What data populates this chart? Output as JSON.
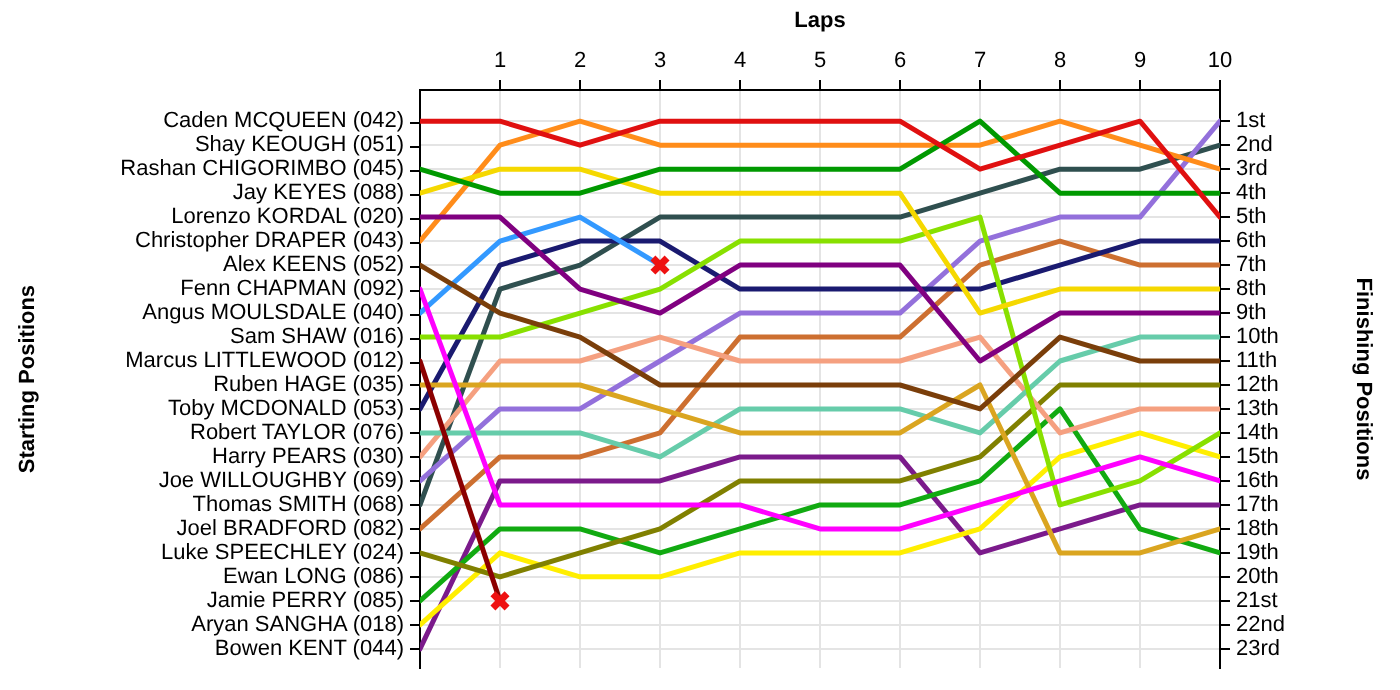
{
  "chart_data": {
    "type": "line",
    "xlabel": "Laps",
    "y2label": "Finishing Positions",
    "x": [
      0,
      1,
      2,
      3,
      4,
      5,
      6,
      7,
      8,
      9,
      10
    ],
    "xlim": [
      0,
      10
    ],
    "xticks": [
      1,
      2,
      3,
      4,
      5,
      6,
      7,
      8,
      9,
      10
    ],
    "y2lim": [
      23.8,
      -0.3
    ],
    "y2ticks": [
      {
        "value": 1,
        "label": "1st"
      },
      {
        "value": 2,
        "label": "2nd"
      },
      {
        "value": 3,
        "label": "3rd"
      },
      {
        "value": 4,
        "label": "4th"
      },
      {
        "value": 5,
        "label": "5th"
      },
      {
        "value": 6,
        "label": "6th"
      },
      {
        "value": 7,
        "label": "7th"
      },
      {
        "value": 8,
        "label": "8th"
      },
      {
        "value": 9,
        "label": "9th"
      },
      {
        "value": 10,
        "label": "10th"
      },
      {
        "value": 11,
        "label": "11th"
      },
      {
        "value": 12,
        "label": "12th"
      },
      {
        "value": 13,
        "label": "13th"
      },
      {
        "value": 14,
        "label": "14th"
      },
      {
        "value": 15,
        "label": "15th"
      },
      {
        "value": 16,
        "label": "16th"
      },
      {
        "value": 17,
        "label": "17th"
      },
      {
        "value": 18,
        "label": "18th"
      },
      {
        "value": 19,
        "label": "19th"
      },
      {
        "value": 20,
        "label": "20th"
      },
      {
        "value": 21,
        "label": "21st"
      },
      {
        "value": 22,
        "label": "22nd"
      },
      {
        "value": 23,
        "label": "23rd"
      }
    ],
    "annotations": [
      "Caden MCQUEEN (042)",
      "Shay KEOUGH (051)",
      "Rashan CHIGORIMBO (045)",
      "Jay KEYES (088)",
      "Lorenzo KORDAL (020)",
      "Christopher DRAPER (043)",
      "Alex KEENS (052)",
      "Fenn CHAPMAN (092)",
      "Angus MOULSDALE (040)",
      "Sam SHAW (016)",
      "Marcus LITTLEWOOD (012)",
      "Ruben HAGE (035)",
      "Toby MCDONALD (053)",
      "Robert TAYLOR (076)",
      "Harry PEARS (030)",
      "Joe WILLOUGHBY (069)",
      "Thomas SMITH (068)",
      "Joel BRADFORD (082)",
      "Luke SPEECHLEY (024)",
      "Ewan LONG (086)",
      "Jamie PERRY (085)",
      "Aryan SANGHA (018)",
      "Bowen KENT (044)",
      "Starting Positions"
    ],
    "grid": true,
    "legend": false,
    "marker": "none",
    "line_style": "solid",
    "series": [
      {
        "axis": "y2",
        "color": "#e01010",
        "values": [
          1,
          1,
          2,
          1,
          1,
          1,
          1,
          3,
          2,
          1,
          5
        ]
      },
      {
        "axis": "y2",
        "color": "#009900",
        "values": [
          3,
          4,
          4,
          3,
          3,
          3,
          3,
          1,
          4,
          4,
          4
        ]
      },
      {
        "axis": "y2",
        "color": "#f5d800",
        "values": [
          4,
          3,
          3,
          4,
          4,
          4,
          4,
          9,
          8,
          8,
          8
        ]
      },
      {
        "axis": "y2",
        "color": "#800080",
        "values": [
          5,
          5,
          8,
          9,
          7,
          7,
          7,
          11,
          9,
          9,
          9
        ]
      },
      {
        "axis": "y2",
        "color": "#ff8c1a",
        "values": [
          6,
          2,
          1,
          2,
          2,
          2,
          2,
          2,
          1,
          2,
          3
        ]
      },
      {
        "axis": "y2",
        "color": "#7a3e0a",
        "values": [
          7,
          9,
          10,
          12,
          12,
          12,
          12,
          13,
          10,
          11,
          11
        ]
      },
      {
        "axis": "y2",
        "color": "#ff00ff",
        "values": [
          8,
          17,
          17,
          17,
          17,
          18,
          18,
          17,
          16,
          15,
          16
        ]
      },
      {
        "axis": "y2",
        "color": "#3399ff",
        "values": [
          9,
          6,
          5,
          7,
          null,
          null,
          null,
          null,
          null,
          null,
          null
        ]
      },
      {
        "axis": "y2",
        "color": "#88e000",
        "values": [
          10,
          10,
          9,
          8,
          6,
          6,
          6,
          5,
          17,
          16,
          14
        ]
      },
      {
        "axis": "y2",
        "color": "#8b0000",
        "values": [
          11,
          21,
          null,
          null,
          null,
          null,
          null,
          null,
          null,
          null,
          null
        ]
      },
      {
        "axis": "y2",
        "color": "#daa520",
        "values": [
          12,
          12,
          12,
          13,
          14,
          14,
          14,
          12,
          19,
          19,
          18
        ]
      },
      {
        "axis": "y2",
        "color": "#1a1a70",
        "values": [
          13,
          7,
          6,
          6,
          8,
          8,
          8,
          8,
          7,
          6,
          6
        ]
      },
      {
        "axis": "y2",
        "color": "#66ccaa",
        "values": [
          14,
          14,
          14,
          15,
          13,
          13,
          13,
          14,
          11,
          10,
          10
        ]
      },
      {
        "axis": "y2",
        "color": "#f5a080",
        "values": [
          15,
          11,
          11,
          10,
          11,
          11,
          11,
          10,
          14,
          13,
          13
        ]
      },
      {
        "axis": "y2",
        "color": "#9370db",
        "values": [
          16,
          13,
          13,
          11,
          9,
          9,
          9,
          6,
          5,
          5,
          1
        ]
      },
      {
        "axis": "y2",
        "color": "#2f4f4f",
        "values": [
          17,
          8,
          7,
          5,
          5,
          5,
          5,
          4,
          3,
          3,
          2
        ]
      },
      {
        "axis": "y2",
        "color": "#cd6f30",
        "values": [
          18,
          15,
          15,
          14,
          10,
          10,
          10,
          7,
          6,
          7,
          7
        ]
      },
      {
        "axis": "y2",
        "color": "#808000",
        "values": [
          19,
          20,
          19,
          18,
          16,
          16,
          16,
          15,
          12,
          12,
          12
        ]
      },
      {
        "axis": "y2",
        "color": "#11aa11",
        "values": [
          21,
          18,
          18,
          19,
          18,
          17,
          17,
          16,
          13,
          18,
          19
        ]
      },
      {
        "axis": "y2",
        "color": "#ffee00",
        "values": [
          22,
          19,
          20,
          20,
          19,
          19,
          19,
          18,
          15,
          14,
          15
        ]
      },
      {
        "axis": "y2",
        "color": "#7b1a8b",
        "values": [
          23,
          16,
          16,
          16,
          15,
          15,
          15,
          19,
          18,
          17,
          17
        ]
      },
      {
        "axis": "y2",
        "type": "scatter",
        "marker": "cross",
        "color": "#ee1111",
        "x": [
          1,
          3
        ],
        "values": [
          21,
          7
        ]
      }
    ]
  }
}
